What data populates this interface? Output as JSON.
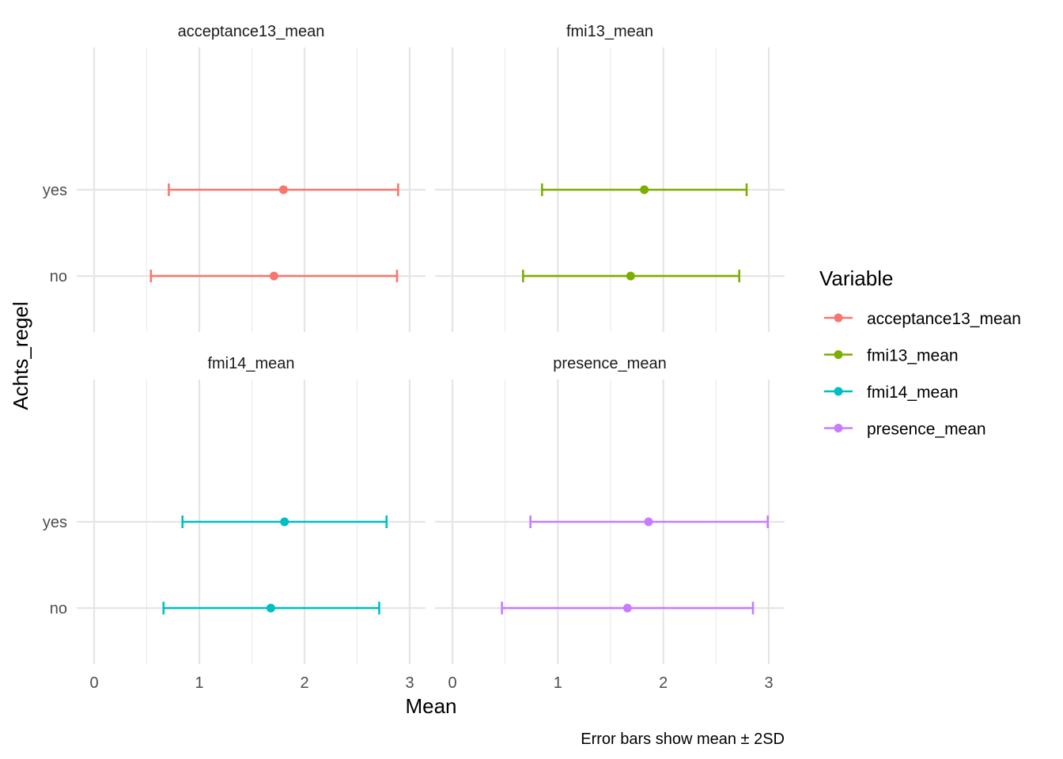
{
  "chart_data": {
    "type": "errorbar",
    "facet_by": "Variable",
    "xlabel": "Mean",
    "ylabel": "Achts_regel",
    "caption": "Error bars show mean ± 2SD",
    "xlim": [
      0,
      3
    ],
    "x_ticks": [
      "0",
      "1",
      "2",
      "3"
    ],
    "categories": [
      "no",
      "yes"
    ],
    "grid": true,
    "legend": {
      "title": "Variable",
      "position": "right",
      "entries": [
        "acceptance13_mean",
        "fmi13_mean",
        "fmi14_mean",
        "presence_mean"
      ]
    },
    "series": [
      {
        "name": "acceptance13_mean",
        "color": "#F8766D",
        "points": [
          {
            "category": "no",
            "mean": 1.71,
            "low": 0.54,
            "high": 2.88
          },
          {
            "category": "yes",
            "mean": 1.8,
            "low": 0.71,
            "high": 2.89
          }
        ]
      },
      {
        "name": "fmi13_mean",
        "color": "#7CAE00",
        "points": [
          {
            "category": "no",
            "mean": 1.69,
            "low": 0.67,
            "high": 2.72
          },
          {
            "category": "yes",
            "mean": 1.82,
            "low": 0.85,
            "high": 2.79
          }
        ]
      },
      {
        "name": "fmi14_mean",
        "color": "#00BFC4",
        "points": [
          {
            "category": "no",
            "mean": 1.68,
            "low": 0.66,
            "high": 2.71
          },
          {
            "category": "yes",
            "mean": 1.81,
            "low": 0.84,
            "high": 2.78
          }
        ]
      },
      {
        "name": "presence_mean",
        "color": "#C77CFF",
        "points": [
          {
            "category": "no",
            "mean": 1.66,
            "low": 0.47,
            "high": 2.85
          },
          {
            "category": "yes",
            "mean": 1.86,
            "low": 0.74,
            "high": 2.99
          }
        ]
      }
    ]
  }
}
